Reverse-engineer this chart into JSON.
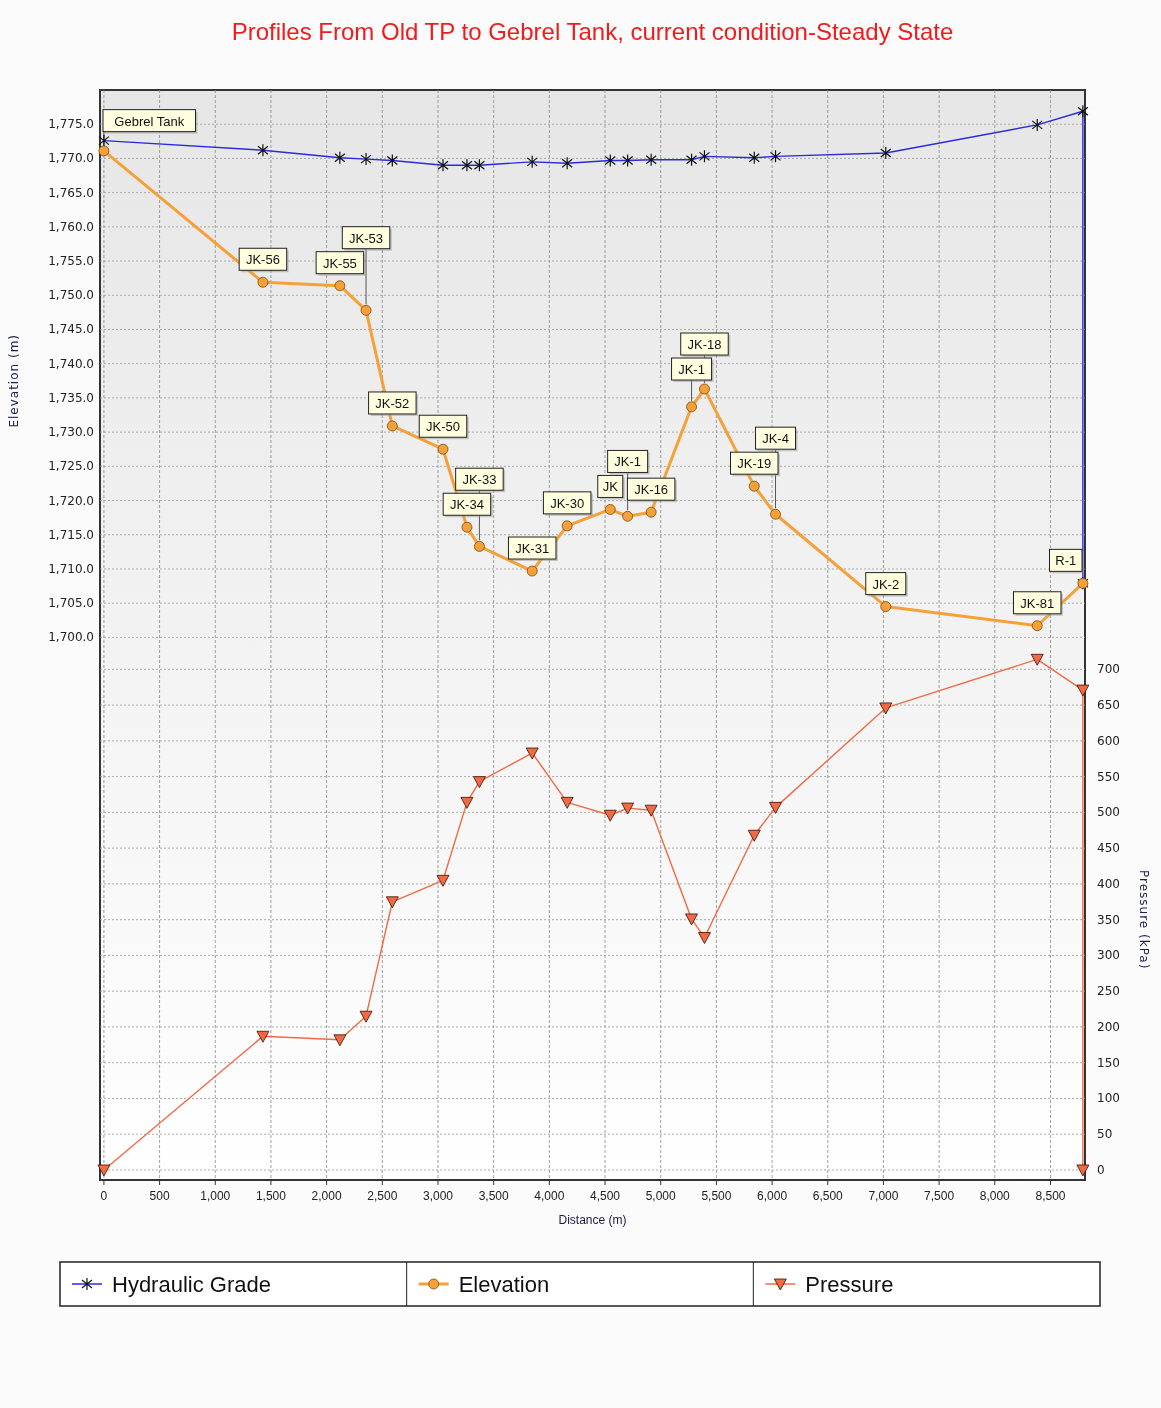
{
  "chart_data": {
    "type": "line",
    "title": "Profiles From Old TP to Gebrel Tank, current condition-Steady State",
    "xlabel": "Distance (m)",
    "ylabel": "Elevation (m)",
    "y2label": "Pressure (kPa)",
    "xlim": [
      -35,
      8810
    ],
    "xticks": [
      0,
      500,
      {
        "value": 1000,
        "label": "1,000"
      },
      {
        "value": 1500,
        "label": "1,500"
      },
      {
        "value": 2000,
        "label": "2,000"
      },
      {
        "value": 2500,
        "label": "2,500"
      },
      {
        "value": 3000,
        "label": "3,000"
      },
      {
        "value": 3500,
        "label": "3,500"
      },
      {
        "value": 4000,
        "label": "4,000"
      },
      {
        "value": 4500,
        "label": "4,500"
      },
      {
        "value": 5000,
        "label": "5,000"
      },
      {
        "value": 5500,
        "label": "5,500"
      },
      {
        "value": 6000,
        "label": "6,000"
      },
      {
        "value": 6500,
        "label": "6,500"
      },
      {
        "value": 7000,
        "label": "7,000"
      },
      {
        "value": 7500,
        "label": "7,500"
      },
      {
        "value": 8000,
        "label": "8,000"
      },
      {
        "value": 8500,
        "label": "8,500"
      }
    ],
    "ylim": [
      1620.7,
      1780
    ],
    "yticks": [
      {
        "value": 1700,
        "label": "1,700.0"
      },
      {
        "value": 1705,
        "label": "1,705.0"
      },
      {
        "value": 1710,
        "label": "1,710.0"
      },
      {
        "value": 1715,
        "label": "1,715.0"
      },
      {
        "value": 1720,
        "label": "1,720.0"
      },
      {
        "value": 1725,
        "label": "1,725.0"
      },
      {
        "value": 1730,
        "label": "1,730.0"
      },
      {
        "value": 1735,
        "label": "1,735.0"
      },
      {
        "value": 1740,
        "label": "1,740.0"
      },
      {
        "value": 1745,
        "label": "1,745.0"
      },
      {
        "value": 1750,
        "label": "1,750.0"
      },
      {
        "value": 1755,
        "label": "1,755.0"
      },
      {
        "value": 1760,
        "label": "1,760.0"
      },
      {
        "value": 1765,
        "label": "1,765.0"
      },
      {
        "value": 1770,
        "label": "1,770.0"
      },
      {
        "value": 1775,
        "label": "1,775.0"
      }
    ],
    "y2lim": [
      -14,
      1510
    ],
    "y2ticks": [
      0,
      50,
      100,
      150,
      200,
      250,
      300,
      350,
      400,
      450,
      500,
      550,
      600,
      650,
      700
    ],
    "grid": true,
    "legend": "bottom",
    "series": [
      {
        "name": "Hydraulic Grade",
        "color": "#2a2ae0",
        "marker": "cross",
        "x": [
          0,
          1428,
          2119,
          2354,
          2590,
          3045,
          3260,
          3372,
          3846,
          4160,
          4547,
          4703,
          4914,
          5277,
          5393,
          5840,
          6031,
          7021,
          8381,
          8791,
          8791
        ],
        "values": [
          1772.6,
          1771.2,
          1770.1,
          1769.9,
          1769.7,
          1769.0,
          1769.0,
          1769.0,
          1769.5,
          1769.3,
          1769.7,
          1769.7,
          1769.8,
          1769.8,
          1770.3,
          1770.1,
          1770.3,
          1770.8,
          1774.9,
          1776.9,
          1707.9
        ]
      },
      {
        "name": "Elevation",
        "color": "#f5a038",
        "marker": "circle",
        "x": [
          0,
          1428,
          2119,
          2354,
          2590,
          3045,
          3260,
          3372,
          3846,
          4160,
          4547,
          4703,
          4914,
          5277,
          5393,
          5840,
          6031,
          7021,
          8381,
          8791
        ],
        "values": [
          1771.1,
          1751.9,
          1751.4,
          1747.8,
          1730.9,
          1727.5,
          1716.1,
          1713.3,
          1709.7,
          1716.3,
          1718.7,
          1717.7,
          1718.3,
          1733.7,
          1736.3,
          1722.1,
          1718.0,
          1704.5,
          1701.7,
          1707.9
        ]
      },
      {
        "name": "Pressure",
        "color": "#f06a44",
        "axis": "y2",
        "marker": "triangle",
        "x": [
          0,
          1428,
          2119,
          2354,
          2590,
          3045,
          3260,
          3372,
          3846,
          4160,
          4547,
          4703,
          4914,
          5277,
          5393,
          5840,
          6031,
          7021,
          8381,
          8791,
          8791
        ],
        "values": [
          0,
          187,
          182,
          215,
          375,
          405,
          514,
          543,
          583,
          514,
          496,
          506,
          503,
          351,
          325,
          468,
          507,
          646,
          714,
          671,
          0
        ]
      }
    ],
    "annotations": [
      {
        "text": "Gebrel Tank",
        "x": 0,
        "y": 1771.1
      },
      {
        "text": "JK-56",
        "x": 1428,
        "y": 1751.9
      },
      {
        "text": "JK-55",
        "x": 2119,
        "y": 1751.4
      },
      {
        "text": "JK-53",
        "x": 2354,
        "y": 1747.8
      },
      {
        "text": "JK-52",
        "x": 2590,
        "y": 1730.9
      },
      {
        "text": "JK-50",
        "x": 3045,
        "y": 1727.5
      },
      {
        "text": "JK-34",
        "x": 3260,
        "y": 1716.1
      },
      {
        "text": "JK-33",
        "x": 3372,
        "y": 1713.3
      },
      {
        "text": "JK-31",
        "x": 3846,
        "y": 1709.7
      },
      {
        "text": "JK-30",
        "x": 4160,
        "y": 1716.3
      },
      {
        "text": "JK",
        "x": 4547,
        "y": 1718.7
      },
      {
        "text": "JK-1",
        "x": 4703,
        "y": 1717.7
      },
      {
        "text": "JK-16",
        "x": 4914,
        "y": 1718.3
      },
      {
        "text": "JK-1",
        "x": 5277,
        "y": 1733.7
      },
      {
        "text": "JK-18",
        "x": 5393,
        "y": 1736.3
      },
      {
        "text": "JK-19",
        "x": 5840,
        "y": 1722.1
      },
      {
        "text": "JK-4",
        "x": 6031,
        "y": 1718.0
      },
      {
        "text": "JK-2",
        "x": 7021,
        "y": 1704.5
      },
      {
        "text": "JK-81",
        "x": 8381,
        "y": 1701.7
      },
      {
        "text": "R-1",
        "x": 8791,
        "y": 1707.9
      }
    ]
  }
}
